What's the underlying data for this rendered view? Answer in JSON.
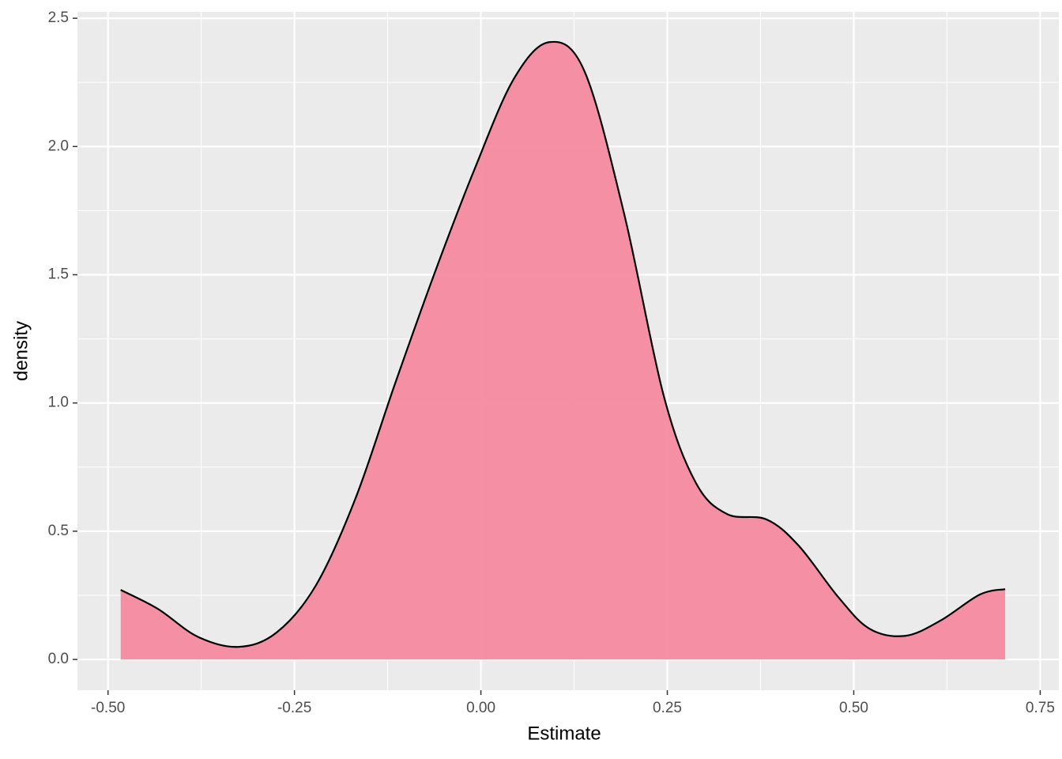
{
  "chart_data": {
    "type": "density",
    "x_label": "Estimate",
    "y_label": "density",
    "x": [
      -0.483,
      -0.433,
      -0.38,
      -0.325,
      -0.274,
      -0.221,
      -0.168,
      -0.115,
      -0.062,
      -0.009,
      0.044,
      0.092,
      0.139,
      0.192,
      0.245,
      0.288,
      0.33,
      0.383,
      0.426,
      0.479,
      0.521,
      0.569,
      0.616,
      0.669,
      0.703
    ],
    "values": [
      0.271,
      0.197,
      0.089,
      0.049,
      0.105,
      0.29,
      0.629,
      1.076,
      1.507,
      1.908,
      2.263,
      2.407,
      2.293,
      1.739,
      1.03,
      0.69,
      0.567,
      0.546,
      0.444,
      0.244,
      0.12,
      0.092,
      0.151,
      0.253,
      0.274
    ],
    "fill_color": "#f48aa0",
    "line_color": "#000000",
    "xlim": [
      -0.541,
      0.775
    ],
    "ylim": [
      -0.12,
      2.525
    ],
    "xticks": [
      {
        "value": -0.5,
        "label": "-0.50"
      },
      {
        "value": -0.25,
        "label": "-0.25"
      },
      {
        "value": 0,
        "label": "0.00"
      },
      {
        "value": 0.25,
        "label": "0.25"
      },
      {
        "value": 0.5,
        "label": "0.50"
      },
      {
        "value": 0.75,
        "label": "0.75"
      }
    ],
    "yticks": [
      {
        "value": 0,
        "label": "0.0"
      },
      {
        "value": 0.5,
        "label": "0.5"
      },
      {
        "value": 1,
        "label": "1.0"
      },
      {
        "value": 1.5,
        "label": "1.5"
      },
      {
        "value": 2,
        "label": "2.0"
      },
      {
        "value": 2.5,
        "label": "2.5"
      }
    ],
    "grid": true,
    "minor_grid": true
  }
}
